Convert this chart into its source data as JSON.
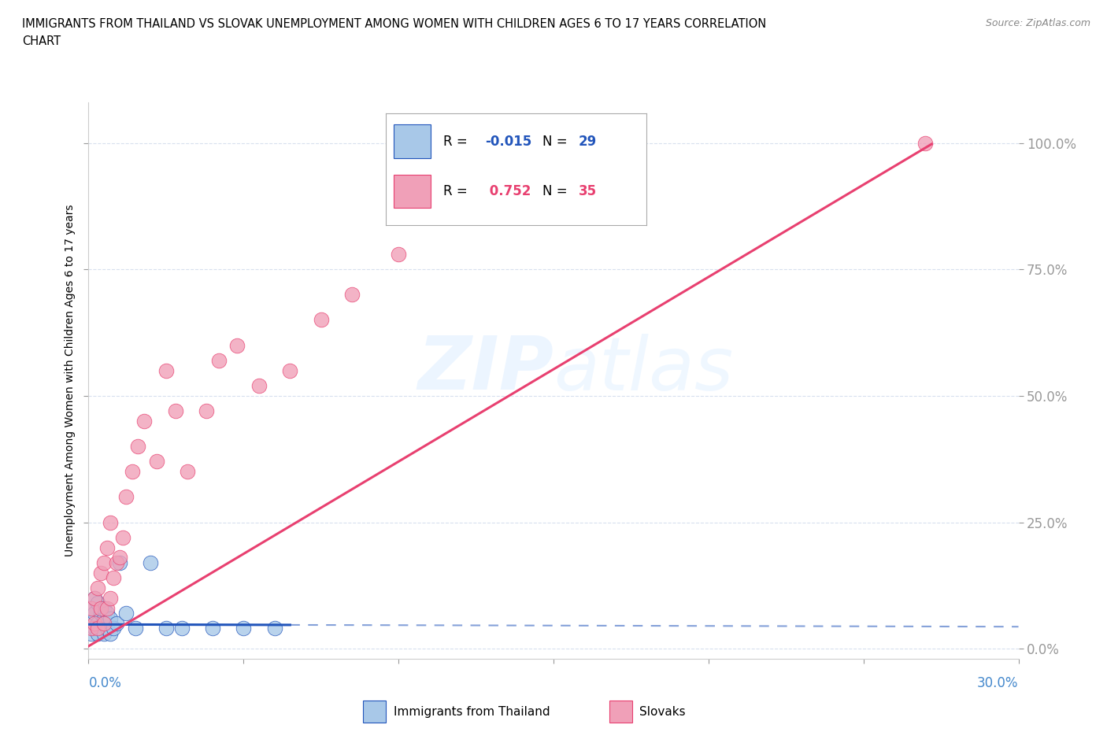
{
  "title_line1": "IMMIGRANTS FROM THAILAND VS SLOVAK UNEMPLOYMENT AMONG WOMEN WITH CHILDREN AGES 6 TO 17 YEARS CORRELATION",
  "title_line2": "CHART",
  "source_text": "Source: ZipAtlas.com",
  "ylabel": "Unemployment Among Women with Children Ages 6 to 17 years",
  "xlim": [
    0.0,
    0.3
  ],
  "ylim": [
    -0.02,
    1.08
  ],
  "ytick_positions": [
    0.0,
    0.25,
    0.5,
    0.75,
    1.0
  ],
  "ytick_labels": [
    "0.0%",
    "25.0%",
    "50.0%",
    "75.0%",
    "100.0%"
  ],
  "xtick_left_label": "0.0%",
  "xtick_right_label": "30.0%",
  "watermark_line1": "ZIP",
  "watermark_line2": "atlas",
  "color_thailand": "#a8c8e8",
  "color_slovak": "#f0a0b8",
  "color_trendline_thailand": "#2255bb",
  "color_trendline_slovak": "#e84070",
  "color_axis_labels": "#4488cc",
  "color_grid": "#c8d4e8",
  "background_color": "#ffffff",
  "thailand_x": [
    0.001,
    0.001,
    0.001,
    0.002,
    0.002,
    0.002,
    0.003,
    0.003,
    0.003,
    0.004,
    0.004,
    0.005,
    0.005,
    0.005,
    0.006,
    0.006,
    0.007,
    0.007,
    0.008,
    0.009,
    0.01,
    0.012,
    0.015,
    0.02,
    0.025,
    0.03,
    0.04,
    0.05,
    0.06
  ],
  "thailand_y": [
    0.03,
    0.06,
    0.08,
    0.04,
    0.07,
    0.1,
    0.03,
    0.05,
    0.09,
    0.04,
    0.07,
    0.03,
    0.06,
    0.08,
    0.04,
    0.07,
    0.03,
    0.06,
    0.04,
    0.05,
    0.17,
    0.07,
    0.04,
    0.17,
    0.04,
    0.04,
    0.04,
    0.04,
    0.04
  ],
  "slovak_x": [
    0.001,
    0.001,
    0.002,
    0.002,
    0.003,
    0.003,
    0.004,
    0.004,
    0.005,
    0.005,
    0.006,
    0.006,
    0.007,
    0.007,
    0.008,
    0.009,
    0.01,
    0.011,
    0.012,
    0.014,
    0.016,
    0.018,
    0.022,
    0.025,
    0.028,
    0.032,
    0.038,
    0.042,
    0.048,
    0.055,
    0.065,
    0.075,
    0.085,
    0.1,
    0.27
  ],
  "slovak_y": [
    0.04,
    0.08,
    0.05,
    0.1,
    0.04,
    0.12,
    0.08,
    0.15,
    0.05,
    0.17,
    0.08,
    0.2,
    0.1,
    0.25,
    0.14,
    0.17,
    0.18,
    0.22,
    0.3,
    0.35,
    0.4,
    0.45,
    0.37,
    0.55,
    0.47,
    0.35,
    0.47,
    0.57,
    0.6,
    0.52,
    0.55,
    0.65,
    0.7,
    0.78,
    1.0
  ],
  "trend_thai_slope": -0.015,
  "trend_thai_intercept": 0.048,
  "trend_slov_slope": 3.65,
  "trend_slov_intercept": 0.005
}
